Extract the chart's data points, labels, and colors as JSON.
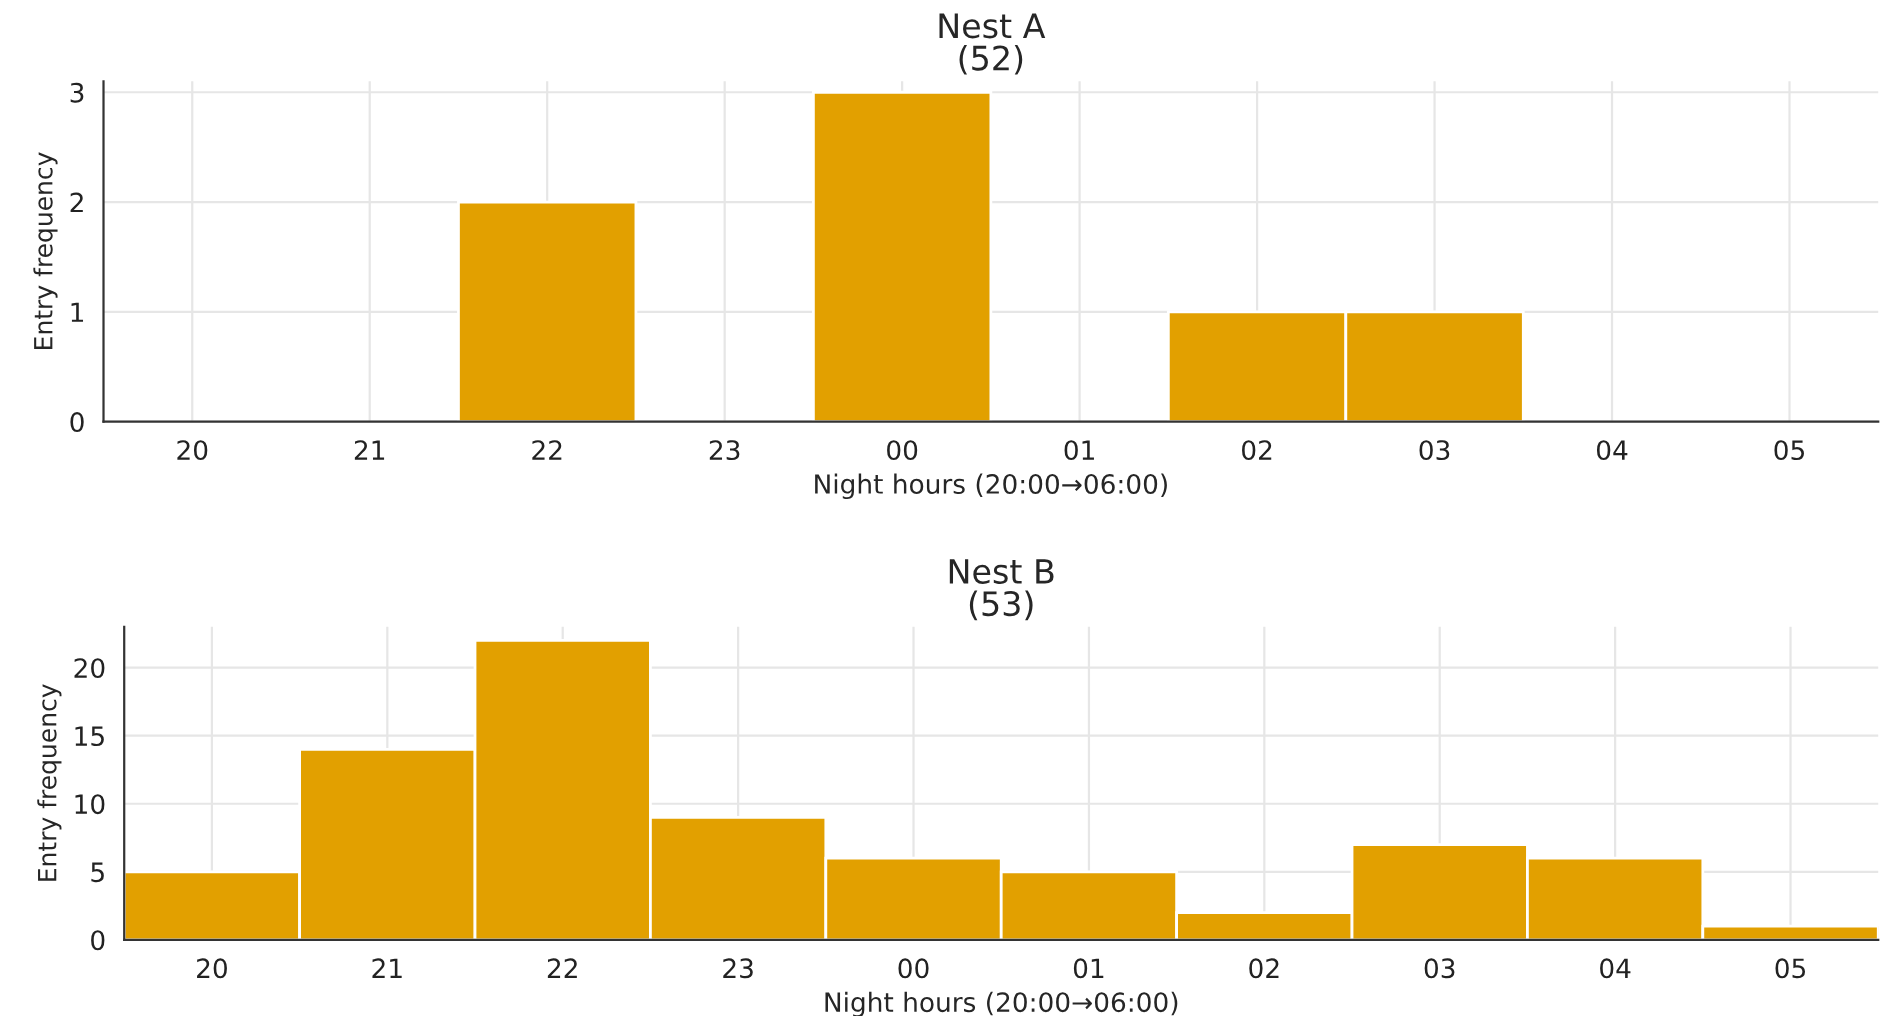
{
  "chart_data": [
    {
      "type": "bar",
      "title": "Nest A\n(52)",
      "xlabel": "Night hours (20:00→06:00)",
      "ylabel": "Entry frequency",
      "categories": [
        "20",
        "21",
        "22",
        "23",
        "00",
        "01",
        "02",
        "03",
        "04",
        "05"
      ],
      "values": [
        0,
        0,
        2,
        0,
        3,
        0,
        1,
        1,
        0,
        0
      ],
      "color": "#e2a000",
      "ylim": [
        0,
        3.1
      ],
      "yticks": [
        0,
        1,
        2,
        3
      ],
      "grid": true
    },
    {
      "type": "bar",
      "title": "Nest B\n(53)",
      "xlabel": "Night hours (20:00→06:00)",
      "ylabel": "Entry frequency",
      "categories": [
        "20",
        "21",
        "22",
        "23",
        "00",
        "01",
        "02",
        "03",
        "04",
        "05"
      ],
      "values": [
        5,
        14,
        22,
        9,
        6,
        5,
        2,
        7,
        6,
        1
      ],
      "color": "#e2a000",
      "ylim": [
        0,
        23
      ],
      "yticks": [
        0,
        5,
        10,
        15,
        20
      ],
      "grid": true
    }
  ]
}
